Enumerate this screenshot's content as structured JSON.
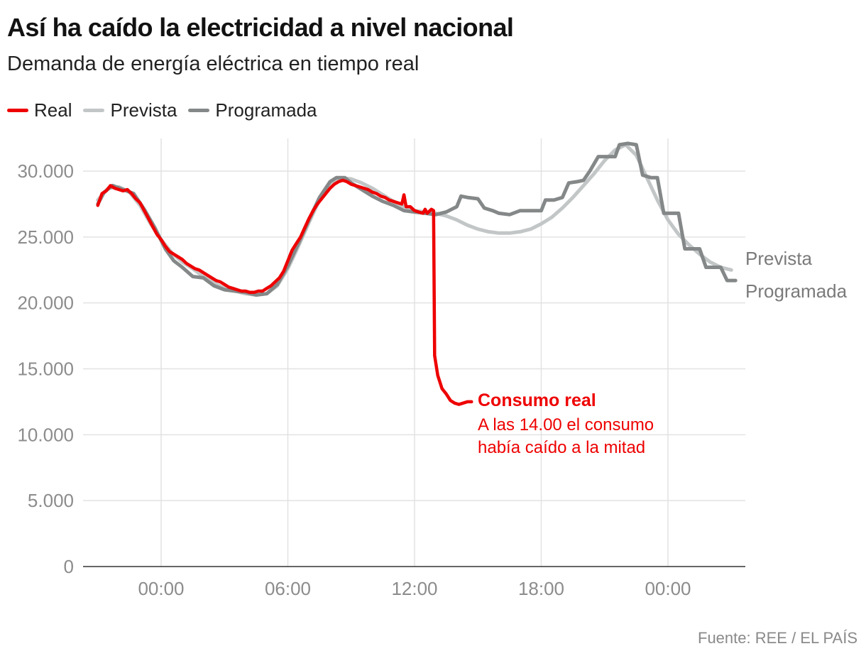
{
  "header": {
    "title": "Así ha caído la electricidad a nivel nacional",
    "subtitle": "Demanda de energía eléctrica en tiempo real"
  },
  "legend": [
    {
      "label": "Real",
      "color": "#ee0000"
    },
    {
      "label": "Prevista",
      "color": "#c2c6c6"
    },
    {
      "label": "Programada",
      "color": "#858888"
    }
  ],
  "end_labels": {
    "prevista": "Prevista",
    "programada": "Programada"
  },
  "annotation": {
    "title": "Consumo real",
    "line1": "A las 14.00 el consumo",
    "line2": "había caído a la mitad"
  },
  "source": "Fuente: REE / EL PAÍS",
  "chart_data": {
    "type": "line",
    "title": "Así ha caído la electricidad a nivel nacional",
    "subtitle": "Demanda de energía eléctrica en tiempo real",
    "xlabel": "",
    "ylabel": "",
    "x_unit": "hours since 00:00 of the first day",
    "xlim": [
      -3.7,
      27.3
    ],
    "ylim": [
      0,
      32500
    ],
    "x_ticks": [
      {
        "x": 0,
        "label": "00:00"
      },
      {
        "x": 6,
        "label": "06:00"
      },
      {
        "x": 12,
        "label": "12:00"
      },
      {
        "x": 18,
        "label": "18:00"
      },
      {
        "x": 24,
        "label": "00:00"
      }
    ],
    "y_ticks": [
      {
        "y": 0,
        "label": "0"
      },
      {
        "y": 5000,
        "label": "5.000"
      },
      {
        "y": 10000,
        "label": "10.000"
      },
      {
        "y": 15000,
        "label": "15.000"
      },
      {
        "y": 20000,
        "label": "20.000"
      },
      {
        "y": 25000,
        "label": "25.000"
      },
      {
        "y": 30000,
        "label": "30.000"
      }
    ],
    "grid": true,
    "series": [
      {
        "name": "Prevista",
        "color": "#c2c6c6",
        "points": [
          [
            -3.0,
            27800
          ],
          [
            -2.5,
            28700
          ],
          [
            -2.0,
            28800
          ],
          [
            -1.5,
            28400
          ],
          [
            -1.0,
            27400
          ],
          [
            -0.5,
            26000
          ],
          [
            0.0,
            24800
          ],
          [
            0.5,
            23800
          ],
          [
            1.0,
            23100
          ],
          [
            1.5,
            22600
          ],
          [
            2.0,
            22000
          ],
          [
            2.5,
            21500
          ],
          [
            3.0,
            21100
          ],
          [
            3.5,
            20900
          ],
          [
            4.0,
            20700
          ],
          [
            4.5,
            20600
          ],
          [
            5.0,
            20700
          ],
          [
            5.5,
            21300
          ],
          [
            6.0,
            22600
          ],
          [
            6.5,
            24300
          ],
          [
            7.0,
            26100
          ],
          [
            7.5,
            27800
          ],
          [
            8.0,
            29000
          ],
          [
            8.5,
            29500
          ],
          [
            9.0,
            29400
          ],
          [
            9.5,
            29100
          ],
          [
            10.0,
            28700
          ],
          [
            10.5,
            28200
          ],
          [
            11.0,
            27700
          ],
          [
            11.5,
            27300
          ],
          [
            12.0,
            27000
          ],
          [
            12.5,
            26900
          ],
          [
            13.0,
            26800
          ],
          [
            13.5,
            26600
          ],
          [
            14.0,
            26300
          ],
          [
            14.5,
            25900
          ],
          [
            15.0,
            25600
          ],
          [
            15.5,
            25400
          ],
          [
            16.0,
            25300
          ],
          [
            16.5,
            25300
          ],
          [
            17.0,
            25400
          ],
          [
            17.5,
            25600
          ],
          [
            18.0,
            26000
          ],
          [
            18.5,
            26500
          ],
          [
            19.0,
            27200
          ],
          [
            19.5,
            28000
          ],
          [
            20.0,
            28900
          ],
          [
            20.5,
            29800
          ],
          [
            21.0,
            30800
          ],
          [
            21.5,
            31600
          ],
          [
            22.0,
            32000
          ],
          [
            22.5,
            31200
          ],
          [
            23.0,
            29500
          ],
          [
            23.5,
            27800
          ],
          [
            24.0,
            26300
          ],
          [
            24.5,
            25200
          ],
          [
            25.0,
            24400
          ],
          [
            25.5,
            23700
          ],
          [
            26.0,
            23100
          ],
          [
            26.5,
            22700
          ],
          [
            27.0,
            22500
          ]
        ]
      },
      {
        "name": "Programada",
        "color": "#858888",
        "points": [
          [
            -3.0,
            27500
          ],
          [
            -2.7,
            28400
          ],
          [
            -2.3,
            28900
          ],
          [
            -1.8,
            28600
          ],
          [
            -1.3,
            28300
          ],
          [
            -0.8,
            27100
          ],
          [
            -0.3,
            25700
          ],
          [
            0.2,
            24100
          ],
          [
            0.6,
            23200
          ],
          [
            1.0,
            22700
          ],
          [
            1.5,
            22000
          ],
          [
            2.0,
            21900
          ],
          [
            2.5,
            21300
          ],
          [
            3.0,
            21000
          ],
          [
            3.5,
            20900
          ],
          [
            4.0,
            20800
          ],
          [
            4.5,
            20600
          ],
          [
            5.0,
            20700
          ],
          [
            5.5,
            21400
          ],
          [
            6.0,
            22800
          ],
          [
            6.5,
            24500
          ],
          [
            7.0,
            26300
          ],
          [
            7.5,
            28000
          ],
          [
            8.0,
            29200
          ],
          [
            8.3,
            29500
          ],
          [
            8.7,
            29500
          ],
          [
            9.0,
            29100
          ],
          [
            9.5,
            28600
          ],
          [
            10.0,
            28100
          ],
          [
            10.5,
            27700
          ],
          [
            11.0,
            27400
          ],
          [
            11.5,
            27000
          ],
          [
            12.0,
            26900
          ],
          [
            12.5,
            26800
          ],
          [
            13.0,
            26700
          ],
          [
            13.5,
            26900
          ],
          [
            14.0,
            27300
          ],
          [
            14.2,
            28100
          ],
          [
            14.5,
            28000
          ],
          [
            15.0,
            27900
          ],
          [
            15.3,
            27200
          ],
          [
            15.7,
            27000
          ],
          [
            16.0,
            26800
          ],
          [
            16.5,
            26700
          ],
          [
            17.0,
            27000
          ],
          [
            17.5,
            27000
          ],
          [
            18.0,
            27000
          ],
          [
            18.2,
            27800
          ],
          [
            18.6,
            27800
          ],
          [
            19.0,
            28000
          ],
          [
            19.3,
            29100
          ],
          [
            19.7,
            29200
          ],
          [
            20.0,
            29300
          ],
          [
            20.3,
            30000
          ],
          [
            20.7,
            31100
          ],
          [
            21.1,
            31100
          ],
          [
            21.5,
            31100
          ],
          [
            21.7,
            32000
          ],
          [
            22.1,
            32100
          ],
          [
            22.5,
            32000
          ],
          [
            22.8,
            29700
          ],
          [
            23.2,
            29500
          ],
          [
            23.5,
            29500
          ],
          [
            23.8,
            26800
          ],
          [
            24.2,
            26800
          ],
          [
            24.5,
            26800
          ],
          [
            24.8,
            24100
          ],
          [
            25.2,
            24100
          ],
          [
            25.5,
            24100
          ],
          [
            25.8,
            22700
          ],
          [
            26.2,
            22700
          ],
          [
            26.5,
            22700
          ],
          [
            26.8,
            21700
          ],
          [
            27.2,
            21700
          ]
        ]
      },
      {
        "name": "Real",
        "color": "#ee0000",
        "points": [
          [
            -3.0,
            27400
          ],
          [
            -2.8,
            28300
          ],
          [
            -2.6,
            28500
          ],
          [
            -2.4,
            28900
          ],
          [
            -2.2,
            28700
          ],
          [
            -2.0,
            28600
          ],
          [
            -1.8,
            28500
          ],
          [
            -1.6,
            28600
          ],
          [
            -1.4,
            28300
          ],
          [
            -1.2,
            27900
          ],
          [
            -1.0,
            27600
          ],
          [
            -0.8,
            27000
          ],
          [
            -0.6,
            26400
          ],
          [
            -0.4,
            25800
          ],
          [
            -0.2,
            25200
          ],
          [
            0.0,
            24800
          ],
          [
            0.2,
            24300
          ],
          [
            0.4,
            23900
          ],
          [
            0.6,
            23700
          ],
          [
            0.8,
            23500
          ],
          [
            1.0,
            23300
          ],
          [
            1.2,
            23000
          ],
          [
            1.4,
            22800
          ],
          [
            1.6,
            22600
          ],
          [
            1.8,
            22500
          ],
          [
            2.0,
            22300
          ],
          [
            2.2,
            22100
          ],
          [
            2.4,
            21900
          ],
          [
            2.6,
            21700
          ],
          [
            2.8,
            21600
          ],
          [
            3.0,
            21400
          ],
          [
            3.2,
            21200
          ],
          [
            3.4,
            21100
          ],
          [
            3.6,
            21000
          ],
          [
            3.8,
            20900
          ],
          [
            4.0,
            20900
          ],
          [
            4.2,
            20800
          ],
          [
            4.4,
            20800
          ],
          [
            4.6,
            20900
          ],
          [
            4.8,
            20900
          ],
          [
            5.0,
            21100
          ],
          [
            5.2,
            21300
          ],
          [
            5.4,
            21600
          ],
          [
            5.6,
            21900
          ],
          [
            5.8,
            22400
          ],
          [
            6.0,
            23200
          ],
          [
            6.2,
            24000
          ],
          [
            6.4,
            24500
          ],
          [
            6.6,
            25000
          ],
          [
            6.8,
            25700
          ],
          [
            7.0,
            26400
          ],
          [
            7.2,
            27000
          ],
          [
            7.4,
            27500
          ],
          [
            7.6,
            27900
          ],
          [
            7.8,
            28300
          ],
          [
            8.0,
            28700
          ],
          [
            8.2,
            29000
          ],
          [
            8.4,
            29200
          ],
          [
            8.6,
            29300
          ],
          [
            8.8,
            29200
          ],
          [
            9.0,
            29000
          ],
          [
            9.2,
            28900
          ],
          [
            9.4,
            28800
          ],
          [
            9.6,
            28700
          ],
          [
            9.8,
            28600
          ],
          [
            10.0,
            28400
          ],
          [
            10.2,
            28300
          ],
          [
            10.4,
            28100
          ],
          [
            10.6,
            28000
          ],
          [
            10.8,
            27800
          ],
          [
            11.0,
            27700
          ],
          [
            11.2,
            27600
          ],
          [
            11.4,
            27500
          ],
          [
            11.5,
            28200
          ],
          [
            11.6,
            27300
          ],
          [
            11.8,
            27300
          ],
          [
            12.0,
            27000
          ],
          [
            12.2,
            26900
          ],
          [
            12.4,
            26800
          ],
          [
            12.5,
            27100
          ],
          [
            12.6,
            26800
          ],
          [
            12.8,
            27100
          ],
          [
            12.9,
            27000
          ],
          [
            12.95,
            16000
          ],
          [
            13.1,
            14500
          ],
          [
            13.3,
            13500
          ],
          [
            13.5,
            13100
          ],
          [
            13.7,
            12600
          ],
          [
            13.9,
            12400
          ],
          [
            14.1,
            12300
          ],
          [
            14.3,
            12400
          ],
          [
            14.5,
            12500
          ],
          [
            14.7,
            12500
          ]
        ]
      }
    ]
  }
}
